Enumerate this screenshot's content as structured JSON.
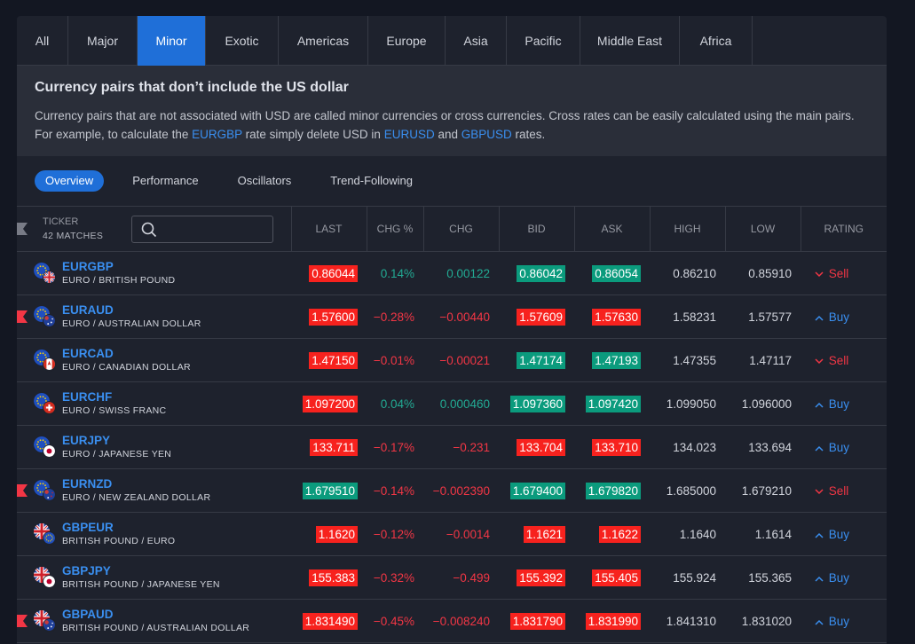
{
  "tabs": [
    {
      "label": "All",
      "width": 58,
      "active": false
    },
    {
      "label": "Major",
      "width": 78,
      "active": false
    },
    {
      "label": "Minor",
      "width": 77,
      "active": true
    },
    {
      "label": "Exotic",
      "width": 82,
      "active": false
    },
    {
      "label": "Americas",
      "width": 101,
      "active": false
    },
    {
      "label": "Europe",
      "width": 87,
      "active": false
    },
    {
      "label": "Asia",
      "width": 69,
      "active": false
    },
    {
      "label": "Pacific",
      "width": 83,
      "active": false
    },
    {
      "label": "Middle East",
      "width": 112,
      "active": false
    },
    {
      "label": "Africa",
      "width": 82,
      "active": false
    }
  ],
  "info": {
    "title": "Currency pairs that don’t include the US dollar",
    "text_1": "Currency pairs that are not associated with USD are called minor currencies or cross currencies. Cross rates can be easily calculated using the main pairs. For example, to calculate the ",
    "link_1": "EURGBP",
    "text_2": " rate simply delete USD in ",
    "link_2": "EURUSD",
    "text_3": " and ",
    "link_3": "GBPUSD",
    "text_4": " rates."
  },
  "subtabs": [
    {
      "label": "Overview",
      "active": true
    },
    {
      "label": "Performance",
      "active": false
    },
    {
      "label": "Oscillators",
      "active": false
    },
    {
      "label": "Trend-Following",
      "active": false
    }
  ],
  "table": {
    "ticker_label": "TICKER",
    "matches": "42 MATCHES",
    "columns": [
      "LAST",
      "CHG %",
      "CHG",
      "BID",
      "ASK",
      "HIGH",
      "LOW",
      "RATING"
    ],
    "rows": [
      {
        "symbol": "EURGBP",
        "desc": "EURO / BRITISH POUND",
        "flag": false,
        "base": "eu",
        "quote": "gb",
        "last": "0.86044",
        "last_dir": "red",
        "chgp": "0.14%",
        "chg": "0.00122",
        "dir": "pos",
        "bid": "0.86042",
        "bid_dir": "green",
        "ask": "0.86054",
        "ask_dir": "green",
        "high": "0.86210",
        "low": "0.85910",
        "rating": "Sell"
      },
      {
        "symbol": "EURAUD",
        "desc": "EURO / AUSTRALIAN DOLLAR",
        "flag": true,
        "base": "eu",
        "quote": "au",
        "last": "1.57600",
        "last_dir": "red",
        "chgp": "−0.28%",
        "chg": "−0.00440",
        "dir": "neg",
        "bid": "1.57609",
        "bid_dir": "red",
        "ask": "1.57630",
        "ask_dir": "red",
        "high": "1.58231",
        "low": "1.57577",
        "rating": "Buy"
      },
      {
        "symbol": "EURCAD",
        "desc": "EURO / CANADIAN DOLLAR",
        "flag": false,
        "base": "eu",
        "quote": "ca",
        "last": "1.47150",
        "last_dir": "red",
        "chgp": "−0.01%",
        "chg": "−0.00021",
        "dir": "neg",
        "bid": "1.47174",
        "bid_dir": "green",
        "ask": "1.47193",
        "ask_dir": "green",
        "high": "1.47355",
        "low": "1.47117",
        "rating": "Sell"
      },
      {
        "symbol": "EURCHF",
        "desc": "EURO / SWISS FRANC",
        "flag": false,
        "base": "eu",
        "quote": "ch",
        "last": "1.097200",
        "last_dir": "red",
        "chgp": "0.04%",
        "chg": "0.000460",
        "dir": "pos",
        "bid": "1.097360",
        "bid_dir": "green",
        "ask": "1.097420",
        "ask_dir": "green",
        "high": "1.099050",
        "low": "1.096000",
        "rating": "Buy"
      },
      {
        "symbol": "EURJPY",
        "desc": "EURO / JAPANESE YEN",
        "flag": false,
        "base": "eu",
        "quote": "jp",
        "last": "133.711",
        "last_dir": "red",
        "chgp": "−0.17%",
        "chg": "−0.231",
        "dir": "neg",
        "bid": "133.704",
        "bid_dir": "red",
        "ask": "133.710",
        "ask_dir": "red",
        "high": "134.023",
        "low": "133.694",
        "rating": "Buy"
      },
      {
        "symbol": "EURNZD",
        "desc": "EURO / NEW ZEALAND DOLLAR",
        "flag": true,
        "base": "eu",
        "quote": "nz",
        "last": "1.679510",
        "last_dir": "green",
        "chgp": "−0.14%",
        "chg": "−0.002390",
        "dir": "neg",
        "bid": "1.679400",
        "bid_dir": "green",
        "ask": "1.679820",
        "ask_dir": "green",
        "high": "1.685000",
        "low": "1.679210",
        "rating": "Sell"
      },
      {
        "symbol": "GBPEUR",
        "desc": "BRITISH POUND / EURO",
        "flag": false,
        "base": "gb",
        "quote": "eu",
        "last": "1.1620",
        "last_dir": "red",
        "chgp": "−0.12%",
        "chg": "−0.0014",
        "dir": "neg",
        "bid": "1.1621",
        "bid_dir": "red",
        "ask": "1.1622",
        "ask_dir": "red",
        "high": "1.1640",
        "low": "1.1614",
        "rating": "Buy"
      },
      {
        "symbol": "GBPJPY",
        "desc": "BRITISH POUND / JAPANESE YEN",
        "flag": false,
        "base": "gb",
        "quote": "jp",
        "last": "155.383",
        "last_dir": "red",
        "chgp": "−0.32%",
        "chg": "−0.499",
        "dir": "neg",
        "bid": "155.392",
        "bid_dir": "red",
        "ask": "155.405",
        "ask_dir": "red",
        "high": "155.924",
        "low": "155.365",
        "rating": "Buy"
      },
      {
        "symbol": "GBPAUD",
        "desc": "BRITISH POUND / AUSTRALIAN DOLLAR",
        "flag": true,
        "base": "gb",
        "quote": "au",
        "last": "1.831490",
        "last_dir": "red",
        "chgp": "−0.45%",
        "chg": "−0.008240",
        "dir": "neg",
        "bid": "1.831790",
        "bid_dir": "red",
        "ask": "1.831990",
        "ask_dir": "red",
        "high": "1.841310",
        "low": "1.831020",
        "rating": "Buy"
      }
    ]
  },
  "colors": {
    "accent": "#1f6fd8",
    "link": "#3a8ff0",
    "up": "#22ab94",
    "down": "#f23645",
    "badge_red": "#f7221e",
    "badge_green": "#0b9b7d"
  }
}
